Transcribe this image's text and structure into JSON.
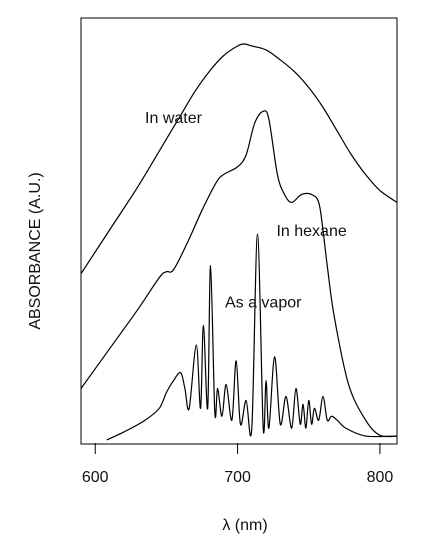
{
  "chart_data": {
    "type": "line",
    "title": "",
    "xlabel": "λ (nm)",
    "ylabel": "ABSORBANCE (A.U.)",
    "xlim": [
      590,
      812
    ],
    "ylim": [
      0,
      1
    ],
    "xticks": [
      600,
      700,
      800
    ],
    "xtick_labels": [
      "600",
      "700",
      "800"
    ],
    "grid": false,
    "legend": "none (curves labeled inline)",
    "series": [
      {
        "name": "In water",
        "x": [
          590,
          610,
          630,
          650,
          660,
          670,
          680,
          690,
          700,
          705,
          710,
          720,
          730,
          740,
          750,
          760,
          770,
          780,
          790,
          800,
          812
        ],
        "y": [
          0.42,
          0.53,
          0.64,
          0.76,
          0.82,
          0.88,
          0.93,
          0.97,
          0.995,
          1.0,
          0.995,
          0.985,
          0.96,
          0.93,
          0.89,
          0.84,
          0.78,
          0.72,
          0.67,
          0.63,
          0.6
        ]
      },
      {
        "name": "In hexane",
        "x": [
          590,
          610,
          630,
          645,
          650,
          655,
          665,
          675,
          685,
          690,
          700,
          706,
          712,
          718,
          722,
          728,
          733,
          738,
          745,
          752,
          757,
          760,
          763,
          768,
          778,
          790,
          800,
          812
        ],
        "y": [
          0.13,
          0.23,
          0.33,
          0.41,
          0.425,
          0.43,
          0.5,
          0.58,
          0.65,
          0.67,
          0.69,
          0.72,
          0.8,
          0.83,
          0.81,
          0.67,
          0.62,
          0.6,
          0.62,
          0.62,
          0.6,
          0.53,
          0.44,
          0.31,
          0.14,
          0.05,
          0.012,
          0.01
        ]
      },
      {
        "name": "As a vapor",
        "x": [
          608,
          620,
          635,
          645,
          650,
          655,
          660,
          663,
          666,
          671,
          674,
          676,
          679,
          681,
          684,
          686,
          689,
          692,
          696,
          699,
          702,
          706,
          710,
          714,
          718,
          720,
          722,
          726,
          730,
          734,
          738,
          741,
          744,
          746,
          748,
          750,
          752,
          754,
          757,
          760,
          763,
          766,
          770,
          776,
          790,
          812
        ],
        "y": [
          0.0,
          0.02,
          0.05,
          0.08,
          0.12,
          0.15,
          0.17,
          0.13,
          0.08,
          0.24,
          0.08,
          0.29,
          0.08,
          0.44,
          0.07,
          0.13,
          0.06,
          0.14,
          0.05,
          0.2,
          0.04,
          0.1,
          0.03,
          0.52,
          0.03,
          0.15,
          0.03,
          0.21,
          0.04,
          0.11,
          0.03,
          0.13,
          0.04,
          0.09,
          0.03,
          0.1,
          0.04,
          0.08,
          0.05,
          0.11,
          0.05,
          0.06,
          0.05,
          0.03,
          0.01,
          0.01
        ]
      }
    ],
    "annotations": [
      {
        "text": "In water",
        "series": "In water"
      },
      {
        "text": "In hexane",
        "series": "In hexane"
      },
      {
        "text": "As a vapor",
        "series": "As a vapor"
      }
    ]
  },
  "colors": {
    "line": "#000000",
    "frame": "#000000",
    "background": "#ffffff"
  }
}
